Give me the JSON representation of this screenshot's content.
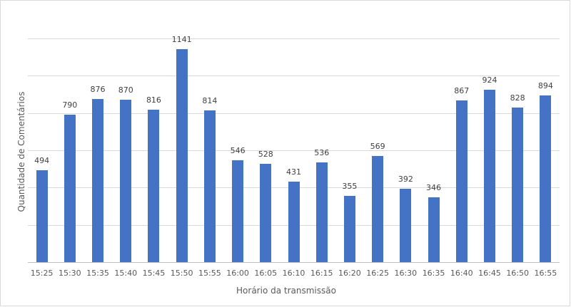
{
  "chart_data": {
    "type": "bar",
    "title": "",
    "xlabel": "Horário da transmissão",
    "ylabel": "Quantidade de Comentários",
    "categories": [
      "15:25",
      "15:30",
      "15:35",
      "15:40",
      "15:45",
      "15:50",
      "15:55",
      "16:00",
      "16:05",
      "16:10",
      "16:15",
      "16:20",
      "16:25",
      "16:30",
      "16:35",
      "16:40",
      "16:45",
      "16:50",
      "16:55"
    ],
    "values": [
      494,
      790,
      876,
      870,
      816,
      1141,
      814,
      546,
      528,
      431,
      536,
      355,
      569,
      392,
      346,
      867,
      924,
      828,
      894
    ],
    "ylim": [
      0,
      1200
    ],
    "ytick_step": 200,
    "grid": true,
    "ytick_labels_visible": false,
    "legend": null,
    "bar_color": "#4472c4",
    "data_labels": true
  }
}
